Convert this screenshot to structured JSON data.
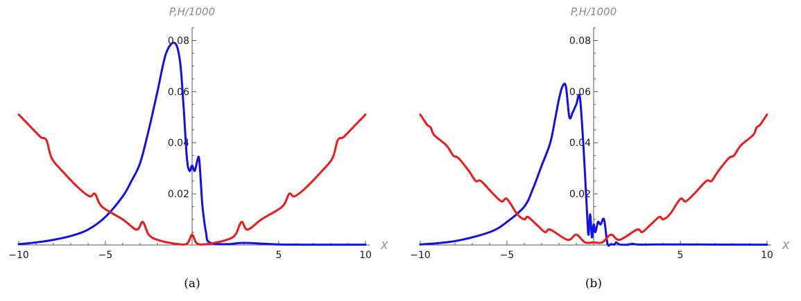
{
  "chart_data": [
    {
      "type": "line",
      "panel_label": "(a)",
      "xlabel": "X",
      "ylabel": "P,H/1000",
      "xlim": [
        -10,
        10
      ],
      "ylim": [
        0,
        0.085
      ],
      "x_ticks": [
        -10,
        -5,
        5,
        10
      ],
      "x_tick_labels": [
        "-10",
        "-5",
        "5",
        "10"
      ],
      "y_ticks": [
        0.02,
        0.04,
        0.06,
        0.08
      ],
      "y_tick_labels": [
        "0.02",
        "0.04",
        "0.06",
        "0.08"
      ],
      "grid": false,
      "colors": {
        "P": "#1010ee",
        "H": "#ee1a1a"
      },
      "series": [
        {
          "x": [
            -10,
            -9,
            -8,
            -7,
            -6,
            -5,
            -4,
            -3.5,
            -3,
            -2.5,
            -2,
            -1.5,
            -1,
            -0.7,
            -0.5,
            -0.3,
            -0.15,
            0,
            0.15,
            0.3,
            0.4,
            0.5,
            0.6,
            0.8,
            1,
            2,
            3,
            5,
            7,
            10
          ],
          "y": [
            0.0003,
            0.001,
            0.002,
            0.0035,
            0.006,
            0.011,
            0.019,
            0.025,
            0.032,
            0.045,
            0.06,
            0.075,
            0.079,
            0.072,
            0.055,
            0.034,
            0.029,
            0.031,
            0.029,
            0.033,
            0.034,
            0.025,
            0.015,
            0.005,
            0.001,
            0.0003,
            0.0008,
            0.0002,
            0.0001,
            0.0001
          ]
        },
        {
          "x": [
            -10,
            -9,
            -8.7,
            -8.4,
            -8.1,
            -7.5,
            -6.5,
            -5.9,
            -5.6,
            -5.2,
            -4,
            -3.2,
            -2.85,
            -2.5,
            -2,
            -1,
            -0.3,
            0,
            0.3,
            1,
            2,
            2.5,
            2.85,
            3.2,
            4,
            5.2,
            5.6,
            5.9,
            6.5,
            7.5,
            8.1,
            8.4,
            8.7,
            9,
            10
          ],
          "y": [
            0.051,
            0.044,
            0.042,
            0.041,
            0.034,
            0.029,
            0.022,
            0.019,
            0.02,
            0.015,
            0.01,
            0.006,
            0.009,
            0.004,
            0.002,
            0.0005,
            0.0005,
            0.004,
            0.0005,
            0.0005,
            0.002,
            0.004,
            0.009,
            0.006,
            0.01,
            0.015,
            0.02,
            0.019,
            0.022,
            0.029,
            0.034,
            0.041,
            0.042,
            0.044,
            0.051
          ]
        }
      ]
    },
    {
      "type": "line",
      "panel_label": "(b)",
      "xlabel": "X",
      "ylabel": "P,H/1000",
      "xlim": [
        -10,
        10
      ],
      "ylim": [
        0,
        0.085
      ],
      "x_ticks": [
        -10,
        -5,
        5,
        10
      ],
      "x_tick_labels": [
        "-10",
        "-5",
        "5",
        "10"
      ],
      "y_ticks": [
        0.02,
        0.04,
        0.06,
        0.08
      ],
      "y_tick_labels": [
        "0.02",
        "0.04",
        "0.06",
        "0.08"
      ],
      "grid": false,
      "colors": {
        "P": "#1010ee",
        "H": "#ee1a1a"
      },
      "series": [
        {
          "x": [
            -10,
            -8,
            -6,
            -5,
            -4,
            -3.5,
            -3,
            -2.5,
            -2.2,
            -2,
            -1.8,
            -1.6,
            -1.4,
            -1.2,
            -1,
            -0.8,
            -0.6,
            -0.4,
            -0.3,
            -0.2,
            -0.1,
            0,
            0.1,
            0.25,
            0.4,
            0.6,
            0.8,
            1,
            1.2,
            1.3,
            1.5,
            2,
            2.2,
            2.5,
            3,
            4,
            10
          ],
          "y": [
            0.0002,
            0.0015,
            0.005,
            0.009,
            0.015,
            0.022,
            0.031,
            0.04,
            0.05,
            0.057,
            0.062,
            0.062,
            0.05,
            0.052,
            0.055,
            0.058,
            0.04,
            0.015,
            0.004,
            0.012,
            0.003,
            0.008,
            0.005,
            0.009,
            0.008,
            0.01,
            0.0005,
            0.0003,
            0.0002,
            0.001,
            0.0002,
            0.0001,
            0.0005,
            0.0002,
            0.0001,
            0.0002,
            0.0001
          ]
        },
        {
          "x": [
            -10,
            -9.6,
            -9.4,
            -9.2,
            -8.5,
            -8.1,
            -7.8,
            -7.2,
            -6.8,
            -6.5,
            -5.8,
            -5.3,
            -5,
            -4.4,
            -4,
            -3.8,
            -3.3,
            -2.8,
            -2.5,
            -1.5,
            -1,
            -0.5,
            0,
            0.5,
            1,
            1.5,
            2.5,
            2.8,
            3.3,
            3.8,
            4,
            4.4,
            5,
            5.3,
            5.8,
            6.5,
            6.8,
            7.2,
            7.8,
            8.1,
            8.5,
            9.2,
            9.4,
            9.6,
            10
          ],
          "y": [
            0.051,
            0.047,
            0.046,
            0.043,
            0.039,
            0.035,
            0.034,
            0.029,
            0.025,
            0.025,
            0.02,
            0.017,
            0.018,
            0.012,
            0.01,
            0.011,
            0.008,
            0.005,
            0.006,
            0.002,
            0.004,
            0.001,
            0.001,
            0.001,
            0.004,
            0.002,
            0.006,
            0.005,
            0.008,
            0.011,
            0.01,
            0.012,
            0.018,
            0.017,
            0.02,
            0.025,
            0.025,
            0.029,
            0.034,
            0.035,
            0.039,
            0.043,
            0.046,
            0.047,
            0.051
          ]
        }
      ]
    }
  ]
}
